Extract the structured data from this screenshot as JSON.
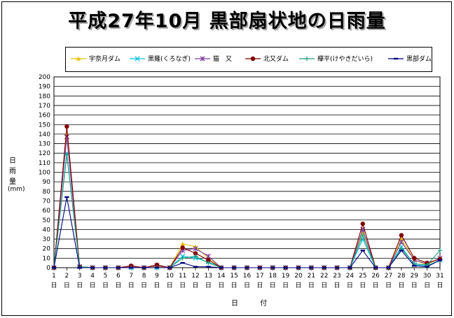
{
  "chart_data": {
    "type": "line",
    "title": "平成27年10月 黒部扇状地の日雨量",
    "ylabel": "日雨量",
    "yunit": "(mm)",
    "xlabel": "日 付",
    "ylim": [
      0,
      200
    ],
    "ytick_step": 10,
    "grid": true,
    "legend_position": "top",
    "x": [
      1,
      2,
      3,
      4,
      5,
      6,
      7,
      8,
      9,
      10,
      11,
      12,
      13,
      14,
      15,
      16,
      17,
      18,
      19,
      20,
      21,
      22,
      23,
      24,
      25,
      26,
      27,
      28,
      29,
      30,
      31
    ],
    "x_tick_labels": [
      "1",
      "2",
      "3",
      "4",
      "5",
      "6",
      "7",
      "8",
      "9",
      "10",
      "11",
      "12",
      "13",
      "14",
      "15",
      "16",
      "17",
      "18",
      "19",
      "20",
      "21",
      "22",
      "23",
      "24",
      "25",
      "26",
      "27",
      "28",
      "29",
      "30",
      "31"
    ],
    "x_tick_suffix": "日",
    "series": [
      {
        "name": "宇奈月ダム",
        "color": "#e8c000",
        "marker": "triangle",
        "values": [
          0,
          140,
          1,
          0,
          0,
          0,
          1,
          0,
          1,
          0,
          25,
          22,
          10,
          0,
          0,
          0,
          0,
          0,
          0,
          0,
          0,
          0,
          0,
          0,
          38,
          0,
          0,
          30,
          8,
          3,
          10
        ]
      },
      {
        "name": "黒薙(くろなぎ)",
        "color": "#00c0e0",
        "marker": "x",
        "values": [
          0,
          120,
          1,
          0,
          0,
          0,
          0,
          0,
          0,
          0,
          12,
          10,
          6,
          0,
          0,
          0,
          0,
          0,
          0,
          0,
          0,
          0,
          0,
          0,
          30,
          0,
          0,
          22,
          3,
          2,
          8
        ]
      },
      {
        "name": "猫　又",
        "color": "#8040a0",
        "marker": "star",
        "values": [
          0,
          137,
          1,
          0,
          0,
          0,
          1,
          0,
          2,
          0,
          18,
          20,
          12,
          0,
          0,
          0,
          0,
          0,
          0,
          0,
          0,
          0,
          0,
          0,
          40,
          0,
          0,
          27,
          8,
          4,
          10
        ]
      },
      {
        "name": "北又ダム",
        "color": "#800000",
        "marker": "circle",
        "values": [
          0,
          148,
          1,
          0,
          0,
          0,
          2,
          0,
          3,
          0,
          21,
          15,
          8,
          0,
          0,
          0,
          0,
          0,
          0,
          0,
          0,
          0,
          0,
          0,
          46,
          0,
          0,
          34,
          10,
          5,
          9
        ]
      },
      {
        "name": "欅平(けやきだいら)",
        "color": "#20a080",
        "marker": "plus",
        "values": [
          0,
          118,
          1,
          0,
          0,
          0,
          0,
          0,
          0,
          0,
          10,
          12,
          5,
          0,
          0,
          0,
          0,
          0,
          0,
          0,
          0,
          0,
          0,
          0,
          34,
          0,
          0,
          20,
          4,
          3,
          18
        ]
      },
      {
        "name": "黒部ダム",
        "color": "#000080",
        "marker": "dash",
        "values": [
          0,
          74,
          0,
          0,
          0,
          0,
          0,
          0,
          0,
          0,
          5,
          1,
          1,
          0,
          0,
          0,
          0,
          0,
          0,
          0,
          0,
          0,
          0,
          0,
          18,
          0,
          0,
          18,
          2,
          1,
          8
        ]
      }
    ]
  }
}
